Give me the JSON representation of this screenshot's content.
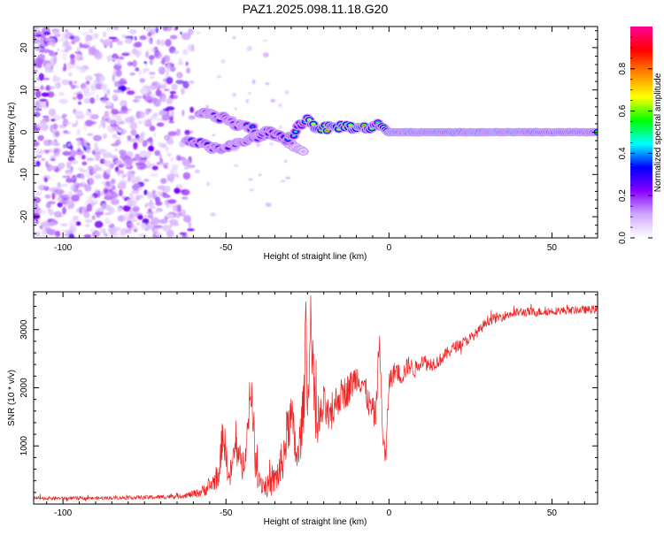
{
  "title": "PAZ1.2025.098.11.18.G20",
  "chart_data": [
    {
      "type": "heatmap",
      "xlabel": "Height of straight line (km)",
      "ylabel": "Frequency (Hz)",
      "xlim": [
        -109,
        64
      ],
      "ylim": [
        -25,
        25
      ],
      "x_ticks": [
        -100,
        -50,
        0,
        50
      ],
      "y_ticks": [
        -20,
        -10,
        0,
        10,
        20
      ],
      "colorbar": {
        "label": "Normalized spectral amplitude",
        "range": [
          0,
          1
        ],
        "ticks": [
          0.0,
          0.2,
          0.4,
          0.6,
          0.8
        ],
        "tick_labels": [
          "0.0",
          "0.2",
          "0.4",
          "0.6",
          "0.8"
        ],
        "colors": [
          "#ffffff",
          "#cfa8ff",
          "#8800ff",
          "#0000ff",
          "#00ffff",
          "#00ff00",
          "#ffff00",
          "#ff8800",
          "#ff0000",
          "#ff0099"
        ]
      },
      "noise_region": {
        "x_range": [
          -109,
          -60
        ],
        "y_range": [
          -25,
          25
        ],
        "typical_amplitude": 0.1
      },
      "ridge": [
        {
          "x": -58,
          "freq": 5.0,
          "amp": 0.3
        },
        {
          "x": -55,
          "freq": 4.0,
          "amp": 0.25
        },
        {
          "x": -52,
          "freq": 3.0,
          "amp": 0.28
        },
        {
          "x": -50,
          "freq": 3.5,
          "amp": 0.3
        },
        {
          "x": -48,
          "freq": 2.0,
          "amp": 0.25
        },
        {
          "x": -45,
          "freq": 1.5,
          "amp": 0.3
        },
        {
          "x": -42,
          "freq": 1.0,
          "amp": 0.35
        },
        {
          "x": -40,
          "freq": -0.5,
          "amp": 0.3
        },
        {
          "x": -37,
          "freq": 0.0,
          "amp": 0.35
        },
        {
          "x": -34,
          "freq": -1.0,
          "amp": 0.4
        },
        {
          "x": -31,
          "freq": -2.0,
          "amp": 0.35
        },
        {
          "x": -29,
          "freq": 0.0,
          "amp": 0.45
        },
        {
          "x": -27,
          "freq": 2.0,
          "amp": 0.5
        },
        {
          "x": -25,
          "freq": 3.0,
          "amp": 0.55
        },
        {
          "x": -22,
          "freq": 1.0,
          "amp": 0.7
        },
        {
          "x": -18,
          "freq": 1.0,
          "amp": 0.75
        },
        {
          "x": -14,
          "freq": 1.5,
          "amp": 0.6
        },
        {
          "x": -10,
          "freq": 1.0,
          "amp": 0.8
        },
        {
          "x": -6,
          "freq": 1.0,
          "amp": 0.7
        },
        {
          "x": -3,
          "freq": 1.8,
          "amp": 0.55
        },
        {
          "x": 0,
          "freq": 0.0,
          "amp": 0.85
        },
        {
          "x": 10,
          "freq": 0.0,
          "amp": 0.85
        },
        {
          "x": 20,
          "freq": 0.0,
          "amp": 0.8
        },
        {
          "x": 30,
          "freq": 0.0,
          "amp": 0.9
        },
        {
          "x": 40,
          "freq": 0.0,
          "amp": 0.85
        },
        {
          "x": 50,
          "freq": 0.0,
          "amp": 0.8
        },
        {
          "x": 60,
          "freq": 0.0,
          "amp": 0.75
        },
        {
          "x": 64,
          "freq": 0.0,
          "amp": 0.75
        }
      ],
      "secondary_branch": [
        {
          "x": -62,
          "freq": -2.0,
          "amp": 0.3
        },
        {
          "x": -58,
          "freq": -2.5,
          "amp": 0.35
        },
        {
          "x": -55,
          "freq": -3.5,
          "amp": 0.3
        },
        {
          "x": -52,
          "freq": -4.0,
          "amp": 0.3
        },
        {
          "x": -48,
          "freq": -3.0,
          "amp": 0.25
        },
        {
          "x": -44,
          "freq": -2.0,
          "amp": 0.3
        },
        {
          "x": -40,
          "freq": -1.0,
          "amp": 0.35
        },
        {
          "x": -36,
          "freq": -0.5,
          "amp": 0.3
        },
        {
          "x": -30,
          "freq": -3.0,
          "amp": 0.15
        },
        {
          "x": -26,
          "freq": -5.0,
          "amp": 0.12
        }
      ]
    },
    {
      "type": "line",
      "xlabel": "Height of straight line (km)",
      "ylabel": "SNR (10 * v/v)",
      "xlim": [
        -109,
        64
      ],
      "ylim": [
        0,
        3650
      ],
      "x_ticks": [
        -100,
        -50,
        0,
        50
      ],
      "y_ticks": [
        1000,
        2000,
        3000
      ],
      "series": [
        {
          "color": "#ee2222",
          "x": [
            -109,
            -100,
            -90,
            -80,
            -70,
            -62,
            -58,
            -55,
            -52,
            -51,
            -49,
            -47,
            -45,
            -43,
            -42,
            -41,
            -39,
            -37,
            -35,
            -33,
            -31,
            -30,
            -28,
            -26,
            -25.5,
            -25,
            -24,
            -22,
            -20,
            -18,
            -16,
            -14,
            -12,
            -10,
            -8,
            -6,
            -4,
            -3,
            -2,
            -1,
            0,
            2,
            4,
            6,
            8,
            10,
            12,
            15,
            18,
            20,
            22,
            25,
            28,
            30,
            33,
            36,
            40,
            45,
            50,
            55,
            60,
            64
          ],
          "y": [
            100,
            100,
            100,
            110,
            120,
            150,
            200,
            300,
            500,
            1300,
            400,
            1000,
            600,
            1400,
            2000,
            700,
            350,
            300,
            400,
            650,
            1300,
            1500,
            700,
            1800,
            3550,
            1600,
            3050,
            1200,
            1700,
            1400,
            1800,
            1900,
            2000,
            2200,
            2100,
            1700,
            1500,
            2900,
            1300,
            700,
            2100,
            2300,
            2200,
            2400,
            2300,
            2500,
            2400,
            2450,
            2600,
            2700,
            2750,
            2850,
            3000,
            3150,
            3200,
            3250,
            3300,
            3300,
            3320,
            3330,
            3340,
            3350
          ],
          "noise": [
            30,
            30,
            30,
            30,
            40,
            50,
            80,
            150,
            200,
            400,
            200,
            350,
            250,
            400,
            450,
            300,
            200,
            200,
            250,
            400,
            450,
            450,
            400,
            500,
            300,
            400,
            350,
            400,
            350,
            300,
            300,
            300,
            280,
            250,
            250,
            250,
            250,
            250,
            250,
            250,
            200,
            180,
            170,
            160,
            150,
            140,
            130,
            120,
            110,
            100,
            100,
            90,
            90,
            90,
            90,
            80,
            80,
            80,
            70,
            70,
            70,
            70
          ]
        }
      ]
    }
  ]
}
